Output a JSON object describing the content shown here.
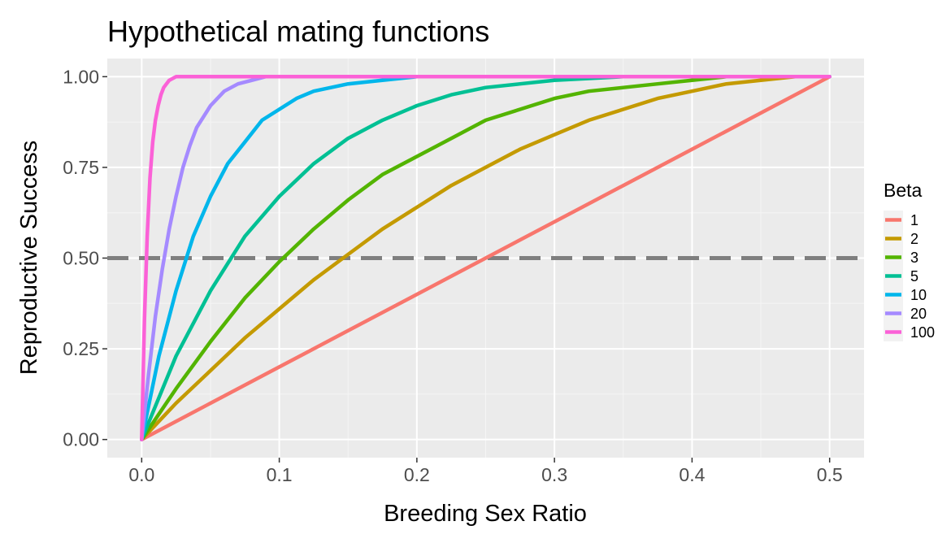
{
  "chart_data": {
    "type": "line",
    "title": "Hypothetical mating functions",
    "xlabel": "Breeding Sex Ratio",
    "ylabel": "Reproductive Success",
    "xlim": [
      -0.025,
      0.525
    ],
    "ylim": [
      -0.05,
      1.05
    ],
    "x_ticks": [
      0.0,
      0.1,
      0.2,
      0.3,
      0.4,
      0.5
    ],
    "x_tick_labels": [
      "0.0",
      "0.1",
      "0.2",
      "0.3",
      "0.4",
      "0.5"
    ],
    "y_ticks": [
      0.0,
      0.25,
      0.5,
      0.75,
      1.0
    ],
    "y_tick_labels": [
      "0.00",
      "0.25",
      "0.50",
      "0.75",
      "1.00"
    ],
    "grid": true,
    "legend": {
      "title": "Beta",
      "placement": "right"
    },
    "reference_line": {
      "y": 0.5,
      "style": "dashed",
      "color": "#7f7f7f"
    },
    "series": [
      {
        "name": "1",
        "color": "#F8766D",
        "x": [
          0,
          0.05,
          0.1,
          0.15,
          0.2,
          0.25,
          0.3,
          0.35,
          0.4,
          0.45,
          0.5
        ],
        "y": [
          0,
          0.1,
          0.2,
          0.3,
          0.4,
          0.5,
          0.6,
          0.7,
          0.8,
          0.9,
          1.0
        ]
      },
      {
        "name": "2",
        "color": "#C49A00",
        "x": [
          0,
          0.025,
          0.05,
          0.075,
          0.1,
          0.125,
          0.15,
          0.175,
          0.2,
          0.225,
          0.25,
          0.275,
          0.3,
          0.325,
          0.35,
          0.375,
          0.4,
          0.425,
          0.45,
          0.475,
          0.5
        ],
        "y": [
          0,
          0.1,
          0.19,
          0.28,
          0.36,
          0.44,
          0.51,
          0.58,
          0.64,
          0.7,
          0.75,
          0.8,
          0.84,
          0.88,
          0.91,
          0.94,
          0.96,
          0.98,
          0.99,
          1.0,
          1.0
        ]
      },
      {
        "name": "3",
        "color": "#53B400",
        "x": [
          0,
          0.025,
          0.05,
          0.075,
          0.1,
          0.125,
          0.15,
          0.175,
          0.2,
          0.225,
          0.25,
          0.275,
          0.3,
          0.325,
          0.35,
          0.375,
          0.4,
          0.425,
          0.45,
          0.475,
          0.5
        ],
        "y": [
          0,
          0.14,
          0.27,
          0.39,
          0.49,
          0.58,
          0.66,
          0.73,
          0.78,
          0.83,
          0.88,
          0.91,
          0.94,
          0.96,
          0.97,
          0.98,
          0.99,
          1.0,
          1.0,
          1.0,
          1.0
        ]
      },
      {
        "name": "5",
        "color": "#00C094",
        "x": [
          0,
          0.025,
          0.05,
          0.075,
          0.1,
          0.125,
          0.15,
          0.175,
          0.2,
          0.225,
          0.25,
          0.275,
          0.3,
          0.35,
          0.4,
          0.45,
          0.5
        ],
        "y": [
          0,
          0.23,
          0.41,
          0.56,
          0.67,
          0.76,
          0.83,
          0.88,
          0.92,
          0.95,
          0.97,
          0.98,
          0.99,
          1.0,
          1.0,
          1.0,
          1.0
        ]
      },
      {
        "name": "10",
        "color": "#00B6EB",
        "x": [
          0,
          0.0125,
          0.025,
          0.0375,
          0.05,
          0.0625,
          0.075,
          0.0875,
          0.1,
          0.1125,
          0.125,
          0.15,
          0.175,
          0.2,
          0.25,
          0.3,
          0.5
        ],
        "y": [
          0,
          0.23,
          0.41,
          0.56,
          0.67,
          0.76,
          0.82,
          0.88,
          0.91,
          0.94,
          0.96,
          0.98,
          0.99,
          1.0,
          1.0,
          1.0,
          1.0
        ]
      },
      {
        "name": "20",
        "color": "#A58AFF",
        "x": [
          0,
          0.005,
          0.01,
          0.015,
          0.02,
          0.025,
          0.03,
          0.035,
          0.04,
          0.045,
          0.05,
          0.06,
          0.07,
          0.08,
          0.09,
          0.1,
          0.125,
          0.15,
          0.2,
          0.5
        ],
        "y": [
          0,
          0.18,
          0.34,
          0.47,
          0.58,
          0.67,
          0.75,
          0.81,
          0.86,
          0.89,
          0.92,
          0.96,
          0.98,
          0.99,
          1.0,
          1.0,
          1.0,
          1.0,
          1.0,
          1.0
        ]
      },
      {
        "name": "100",
        "color": "#FB61D7",
        "x": [
          0,
          0.002,
          0.004,
          0.006,
          0.008,
          0.01,
          0.012,
          0.014,
          0.016,
          0.018,
          0.02,
          0.025,
          0.03,
          0.04,
          0.05,
          0.1,
          0.2,
          0.5
        ],
        "y": [
          0,
          0.33,
          0.56,
          0.72,
          0.82,
          0.88,
          0.92,
          0.95,
          0.97,
          0.98,
          0.99,
          1.0,
          1.0,
          1.0,
          1.0,
          1.0,
          1.0,
          1.0
        ]
      }
    ]
  }
}
